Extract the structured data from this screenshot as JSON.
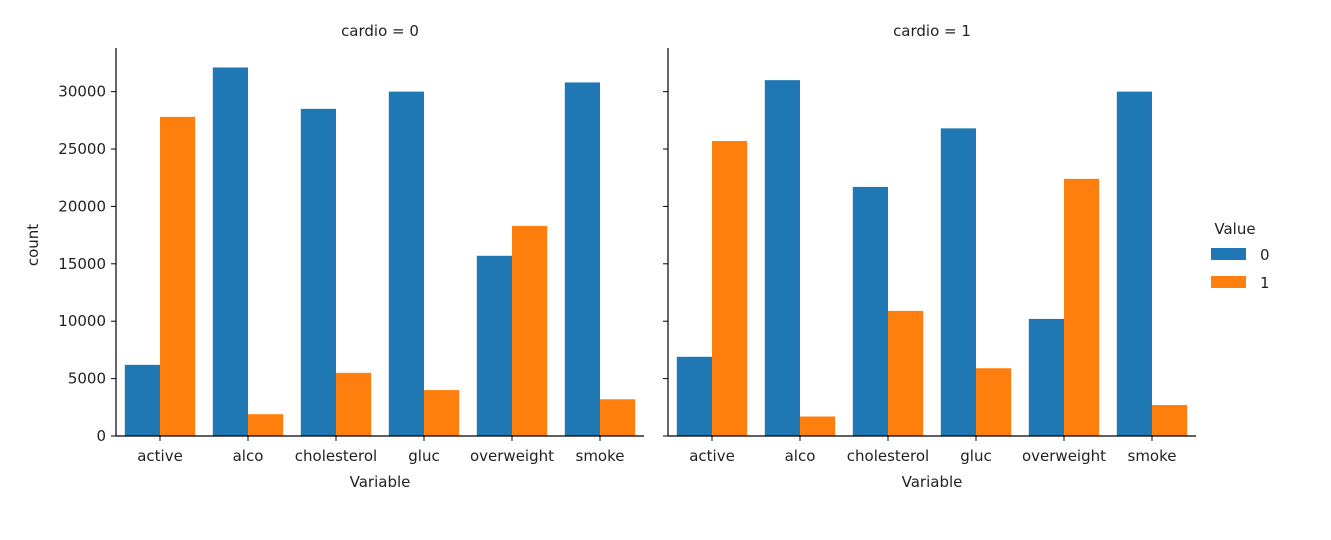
{
  "chart_data": {
    "type": "bar",
    "facet_variable": "cardio",
    "facets": [
      {
        "title": "cardio = 0",
        "categories": [
          "active",
          "alco",
          "cholesterol",
          "gluc",
          "overweight",
          "smoke"
        ],
        "series": [
          {
            "name": "0",
            "values": [
              6200,
              32100,
              28500,
              30000,
              15700,
              30800
            ]
          },
          {
            "name": "1",
            "values": [
              27800,
              1900,
              5500,
              4000,
              18300,
              3200
            ]
          }
        ]
      },
      {
        "title": "cardio = 1",
        "categories": [
          "active",
          "alco",
          "cholesterol",
          "gluc",
          "overweight",
          "smoke"
        ],
        "series": [
          {
            "name": "0",
            "values": [
              6900,
              31000,
              21700,
              26800,
              10200,
              30000
            ]
          },
          {
            "name": "1",
            "values": [
              25700,
              1700,
              10900,
              5900,
              22400,
              2700
            ]
          }
        ]
      }
    ],
    "xlabel": "Variable",
    "ylabel": "count",
    "ylim": [
      0,
      33800
    ],
    "yticks": [
      0,
      5000,
      10000,
      15000,
      20000,
      25000,
      30000
    ],
    "shared_y": true,
    "legend": {
      "title": "Value",
      "placement": "right",
      "entries": [
        "0",
        "1"
      ]
    },
    "colors": {
      "0": "#1f77b4",
      "1": "#ff7f0e"
    },
    "grid": false
  }
}
